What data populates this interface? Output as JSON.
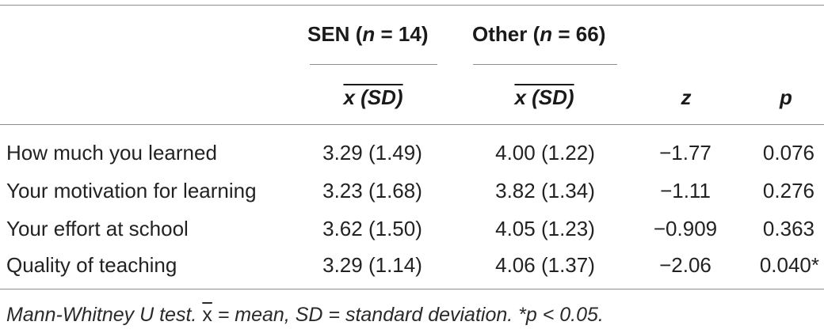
{
  "table": {
    "groups": [
      {
        "name": "SEN",
        "n_label": "n",
        "n_value": "= 14"
      },
      {
        "name": "Other",
        "n_label": "n",
        "n_value": "= 66"
      }
    ],
    "subheaders": {
      "mean_sd": "x (SD)",
      "z": "z",
      "p": "p"
    },
    "rows": [
      {
        "label": "How much you learned",
        "sen": "3.29 (1.49)",
        "other": "4.00 (1.22)",
        "z": "−1.77",
        "p": "0.076"
      },
      {
        "label": "Your motivation for learning",
        "sen": "3.23 (1.68)",
        "other": "3.82 (1.34)",
        "z": "−1.11",
        "p": "0.276"
      },
      {
        "label": "Your effort at school",
        "sen": "3.62 (1.50)",
        "other": "4.05 (1.23)",
        "z": "−0.909",
        "p": "0.363"
      },
      {
        "label": "Quality of teaching",
        "sen": "3.29 (1.14)",
        "other": "4.06 (1.37)",
        "z": "−2.06",
        "p": "0.040*"
      }
    ],
    "note": {
      "before": "Mann-Whitney U test. ",
      "symbol": "x",
      "after": " = mean, SD = standard deviation. *p < 0.05."
    }
  }
}
